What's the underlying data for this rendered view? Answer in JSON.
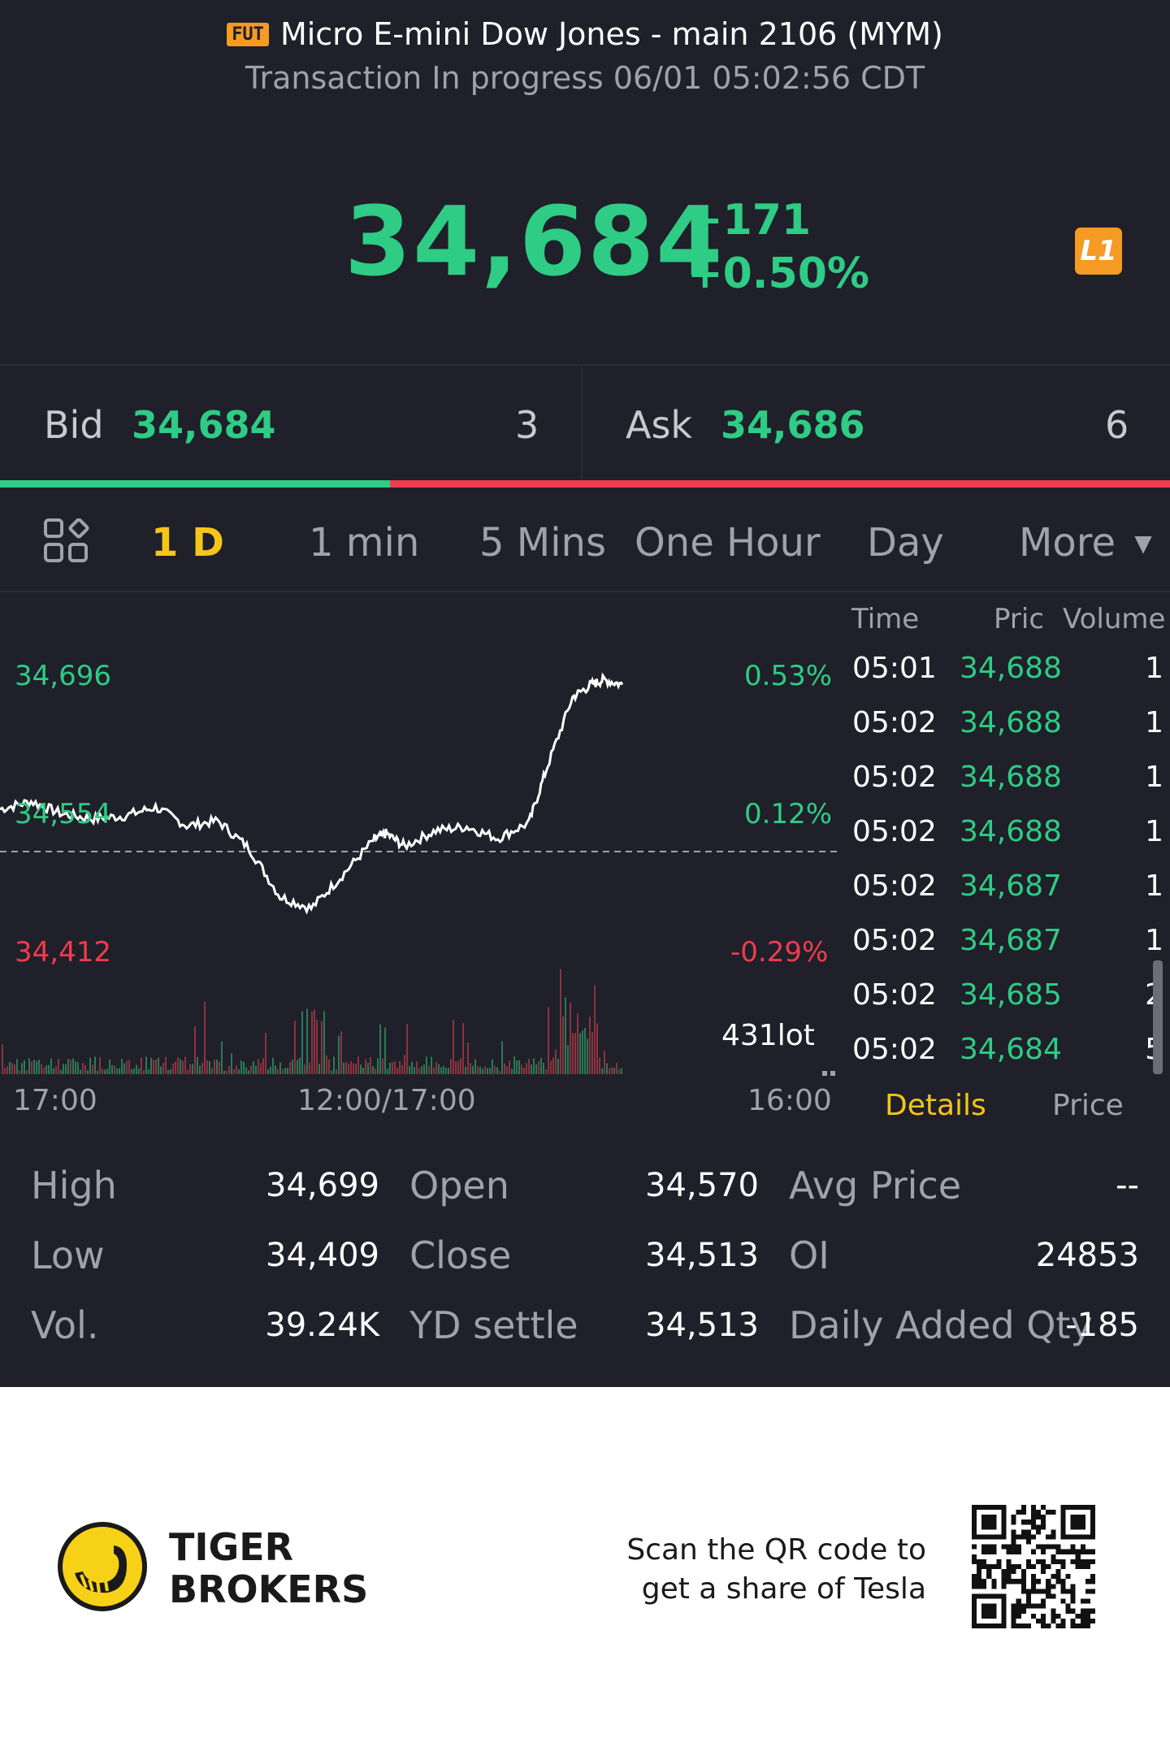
{
  "header": {
    "badge": "FUT",
    "title": "Micro E-mini Dow Jones - main 2106 (MYM)",
    "status": "Transaction In progress 06/01 05:02:56 CDT"
  },
  "quote": {
    "price": "34,684",
    "change": "+171",
    "change_pct": "+0.50%",
    "level_badge": "L1"
  },
  "bid_ask": {
    "bid_label": "Bid",
    "bid_price": "34,684",
    "bid_qty": "3",
    "ask_label": "Ask",
    "ask_price": "34,686",
    "ask_qty": "6",
    "bid_fraction": 0.333
  },
  "tabs": {
    "items": [
      "1 D",
      "1 min",
      "5 Mins",
      "One Hour",
      "Day",
      "More"
    ],
    "active": "1 D"
  },
  "chart_data": {
    "type": "line",
    "y_labels_left": [
      "34,696",
      "34,554",
      "34,412"
    ],
    "y_labels_right": [
      "0.53%",
      "0.12%",
      "-0.29%"
    ],
    "x_labels": [
      "17:00",
      "12:00/17:00",
      "16:00"
    ],
    "ylim": [
      34412,
      34696
    ],
    "reference_close": 34513,
    "volume_label": "431lot",
    "series": [
      {
        "x": [
          0,
          0.05,
          0.1,
          0.15,
          0.2,
          0.25,
          0.3,
          0.35,
          0.4,
          0.45,
          0.5,
          0.55,
          0.6,
          0.62,
          0.65,
          0.7,
          0.75,
          0.8,
          0.85,
          0.88,
          0.92,
          0.95,
          0.97,
          1.0
        ],
        "values": [
          34560,
          34568,
          34555,
          34550,
          34553,
          34562,
          34543,
          34548,
          34520,
          34470,
          34458,
          34492,
          34528,
          34535,
          34522,
          34538,
          34542,
          34530,
          34546,
          34605,
          34675,
          34688,
          34693,
          34688
        ]
      }
    ]
  },
  "trades": {
    "headers": [
      "Time",
      "Pric",
      "Volume"
    ],
    "rows": [
      {
        "time": "05:01",
        "price": "34,688",
        "vol": "1"
      },
      {
        "time": "05:02",
        "price": "34,688",
        "vol": "1"
      },
      {
        "time": "05:02",
        "price": "34,688",
        "vol": "1"
      },
      {
        "time": "05:02",
        "price": "34,688",
        "vol": "1"
      },
      {
        "time": "05:02",
        "price": "34,687",
        "vol": "1"
      },
      {
        "time": "05:02",
        "price": "34,687",
        "vol": "1"
      },
      {
        "time": "05:02",
        "price": "34,685",
        "vol": "2"
      },
      {
        "time": "05:02",
        "price": "34,684",
        "vol": "5"
      }
    ],
    "sub_tabs": [
      "Details",
      "Price"
    ],
    "active_sub_tab": "Details"
  },
  "stats": {
    "high_label": "High",
    "high": "34,699",
    "low_label": "Low",
    "low": "34,409",
    "vol_label": "Vol.",
    "vol": "39.24K",
    "open_label": "Open",
    "open": "34,570",
    "close_label": "Close",
    "close": "34,513",
    "yd_label": "YD settle",
    "yd": "34,513",
    "avg_label": "Avg Price",
    "avg": "--",
    "oi_label": "OI",
    "oi": "24853",
    "daq_label": "Daily Added Qty",
    "daq": "-185"
  },
  "footer": {
    "brand_line1": "TIGER",
    "brand_line2": "BROKERS",
    "promo_line1": "Scan the QR code to",
    "promo_line2": "get a share of Tesla"
  },
  "colors": {
    "background": "#1f2029",
    "up": "#2ecc85",
    "down": "#f23b4e",
    "accent": "#f5c518",
    "badge": "#f59a23"
  }
}
